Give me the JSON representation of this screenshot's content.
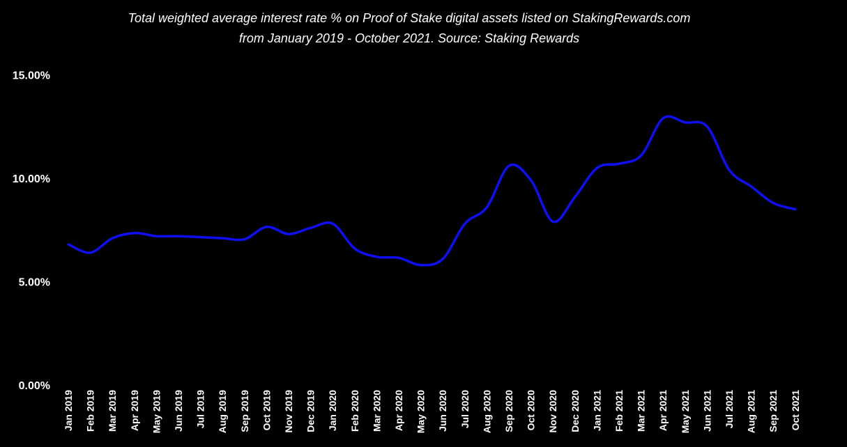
{
  "chart_data": {
    "type": "line",
    "title_lines": [
      "Total weighted average interest rate % on Proof of Stake digital assets listed on StakingRewards.com",
      "from January 2019 - October 2021. Source: Staking Rewards"
    ],
    "xlabel": "",
    "ylabel": "",
    "ylim": [
      0,
      15
    ],
    "yticks": [
      0,
      5,
      10,
      15
    ],
    "ytick_labels": [
      "0.00%",
      "5.00%",
      "10.00%",
      "15.00%"
    ],
    "grid": false,
    "categories": [
      "Jan 2019",
      "Feb 2019",
      "Mar 2019",
      "Apr 2019",
      "May 2019",
      "Jun 2019",
      "Jul 2019",
      "Aug 2019",
      "Sep 2019",
      "Oct 2019",
      "Nov 2019",
      "Dec 2019",
      "Jan 2020",
      "Feb 2020",
      "Mar 2020",
      "Apr 2020",
      "May 2020",
      "Jun 2020",
      "Jul 2020",
      "Aug 2020",
      "Sep 2020",
      "Oct 2020",
      "Nov 2020",
      "Dec 2020",
      "Jan 2021",
      "Feb 2021",
      "Mar 2021",
      "Apr 2021",
      "May 2021",
      "Jun 2021",
      "Jul 2021",
      "Aug 2021",
      "Sep 2021",
      "Oct 2021"
    ],
    "series": [
      {
        "values": [
          6.8,
          6.4,
          7.1,
          7.35,
          7.2,
          7.2,
          7.15,
          7.1,
          7.05,
          7.65,
          7.3,
          7.6,
          7.8,
          6.6,
          6.2,
          6.15,
          5.8,
          6.1,
          7.8,
          8.6,
          10.6,
          9.9,
          7.9,
          9.1,
          10.5,
          10.7,
          11.1,
          12.9,
          12.7,
          12.5,
          10.4,
          9.6,
          8.8,
          8.5
        ],
        "color": "#0f0ff5"
      }
    ]
  }
}
